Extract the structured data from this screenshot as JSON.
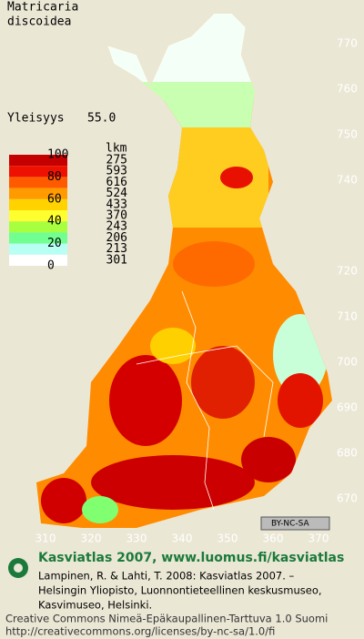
{
  "title": [
    "Matricaria",
    "discoidea"
  ],
  "frequency": {
    "label": "Yleisyys",
    "value": "55.0"
  },
  "legend": {
    "scale_labels": [
      100,
      80,
      60,
      40,
      20,
      0
    ],
    "count_header": "lkm",
    "counts": [
      275,
      593,
      616,
      524,
      433,
      370,
      243,
      206,
      213,
      301
    ],
    "colors": [
      "#c40000",
      "#ee1000",
      "#ff5a00",
      "#ff9a00",
      "#ffd200",
      "#ffff30",
      "#a8ff40",
      "#70ff90",
      "#b8fff4",
      "#ffffff"
    ]
  },
  "grid": {
    "north": [
      770,
      760,
      750,
      740,
      720,
      710,
      700,
      690,
      680,
      670
    ],
    "east": [
      310,
      320,
      330,
      340,
      350,
      360,
      370
    ]
  },
  "badge": "BY-NC-SA",
  "footer": {
    "heading": "Kasviatlas 2007, www.luomus.fi/kasviatlas",
    "citation": [
      "Lampinen, R. & Lahti, T. 2008: Kasviatlas 2007. –",
      "Helsingin Yliopisto, Luonnontieteellinen keskusmuseo,",
      "Kasvimuseo, Helsinki."
    ],
    "license": [
      "Creative Commons Nimeä-Epäkaupallinen-Tarttuva 1.0 Suomi",
      "http://creativecommons.org/licenses/by-nc-sa/1.0/fi"
    ]
  }
}
